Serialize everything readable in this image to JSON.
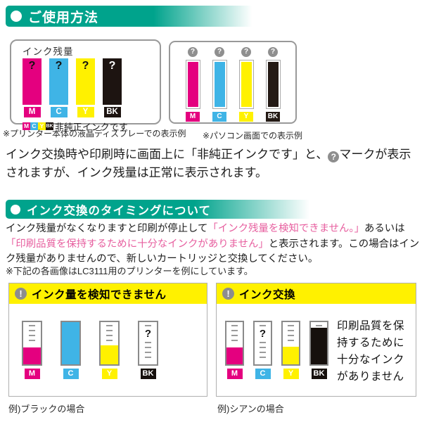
{
  "header_usage": {
    "title": "ご使用方法"
  },
  "header_timing": {
    "title": "インク交換のタイミングについて"
  },
  "panel_lcd": {
    "title": "インク残量",
    "bars": [
      {
        "label": "M",
        "color": "#e4007f",
        "q": "?",
        "q_color": "#111"
      },
      {
        "label": "C",
        "color": "#3fb4e6",
        "q": "?",
        "q_color": "#111"
      },
      {
        "label": "Y",
        "color": "#fff100",
        "q": "?",
        "q_color": "#111"
      },
      {
        "label": "BK",
        "color": "#1d1411",
        "q": "?",
        "q_color": "#fff"
      }
    ],
    "notice": "非純正インクです",
    "caption": "※プリンター本体の液晶ディズプレーでの表示例"
  },
  "panel_pc": {
    "question_mark": "?",
    "bars": [
      {
        "label": "M",
        "color": "#e4007f"
      },
      {
        "label": "C",
        "color": "#3fb4e6"
      },
      {
        "label": "Y",
        "color": "#fff100"
      },
      {
        "label": "BK",
        "color": "#241a15"
      }
    ],
    "caption": "※パソコン画面での表示例"
  },
  "para1": {
    "seg1": "インク交換時や印刷時に画面上に「非純正インクです」と、",
    "icon": "?",
    "seg2": "マークが表示されますが、インク残量は正常に表示されます。"
  },
  "para2": {
    "seg1": "インク残量がなくなりますと印刷が停止して",
    "seg2": "「インク残量を検知できません。」",
    "seg3": "あるいは",
    "seg4": "「印刷品質を保持するために十分なインクがありません」",
    "seg5": "と表示されます。この場合はインク残量がありませんので、新しいカートリッジと交換してください。"
  },
  "note": "※下記の各画像はLC3111用のプリンターを例にしています。",
  "dialog_left": {
    "icon": "!",
    "title": "インク量を検知できません",
    "gauges": [
      {
        "label": "M",
        "color": "#e4007f",
        "fill": 40,
        "ticks": 4
      },
      {
        "label": "C",
        "color": "#3fb4e6",
        "fill": 100,
        "ticks": 0
      },
      {
        "label": "Y",
        "color": "#fff100",
        "fill": 45,
        "ticks": 4
      },
      {
        "label": "BK",
        "color": "#16100d",
        "fill": 0,
        "ticks": 5,
        "q": "?"
      }
    ],
    "caption": "例)ブラックの場合"
  },
  "dialog_right": {
    "icon": "!",
    "title": "インク交換",
    "message": "印刷品質を保持するために十分なインクがありません",
    "gauges": [
      {
        "label": "M",
        "color": "#e4007f",
        "fill": 40,
        "ticks": 4
      },
      {
        "label": "C",
        "color": "#3fb4e6",
        "fill": 0,
        "ticks": 5,
        "q": "?"
      },
      {
        "label": "Y",
        "color": "#fff100",
        "fill": 42,
        "ticks": 4
      },
      {
        "label": "BK",
        "color": "#16100d",
        "fill": 86,
        "ticks": 1
      }
    ],
    "caption": "例)シアンの場合"
  },
  "colors": {
    "accent_teal": "#00a38c",
    "alert_yellow": "#fff100",
    "pink_text": "#e75f9f",
    "icon_gray": "#8d8d8d"
  }
}
